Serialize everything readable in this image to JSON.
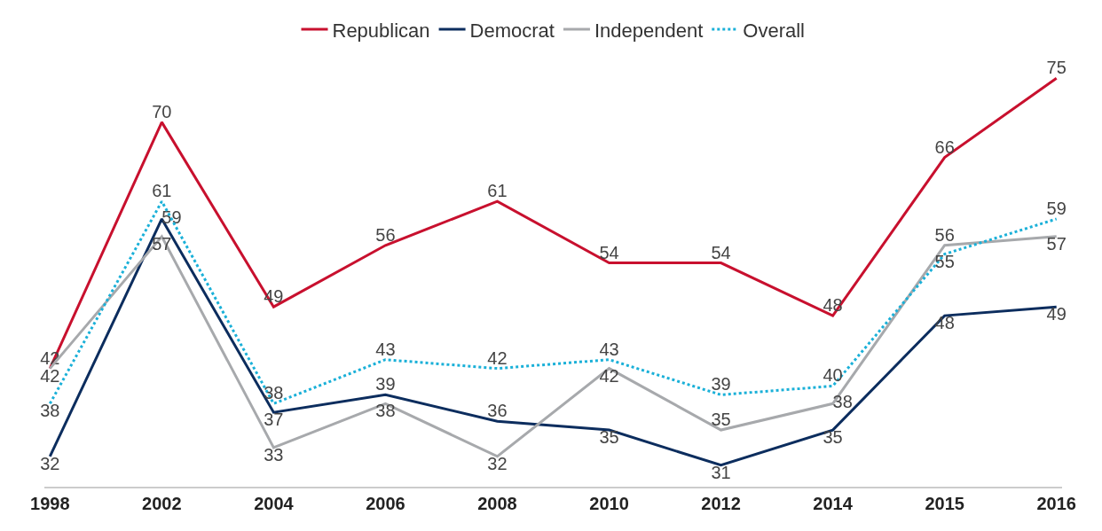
{
  "chart_data": {
    "type": "line",
    "categories": [
      "1998",
      "2002",
      "2004",
      "2006",
      "2008",
      "2010",
      "2012",
      "2014",
      "2015",
      "2016"
    ],
    "series": [
      {
        "name": "Republican",
        "color": "#c8102e",
        "line_style": "solid",
        "values": [
          42,
          70,
          49,
          56,
          61,
          54,
          54,
          48,
          66,
          75
        ]
      },
      {
        "name": "Democrat",
        "color": "#0c2d5e",
        "line_style": "solid",
        "values": [
          32,
          59,
          37,
          39,
          36,
          35,
          31,
          35,
          48,
          49
        ]
      },
      {
        "name": "Independent",
        "color": "#a7a9ac",
        "line_style": "solid",
        "values": [
          42,
          57,
          33,
          38,
          32,
          42,
          35,
          38,
          56,
          57
        ]
      },
      {
        "name": "Overall",
        "color": "#1ab0d8",
        "line_style": "dotted",
        "values": [
          38,
          61,
          38,
          43,
          42,
          43,
          39,
          40,
          55,
          59
        ]
      }
    ],
    "data_labels": true,
    "marker": "none",
    "grid": false,
    "legend": "top"
  }
}
